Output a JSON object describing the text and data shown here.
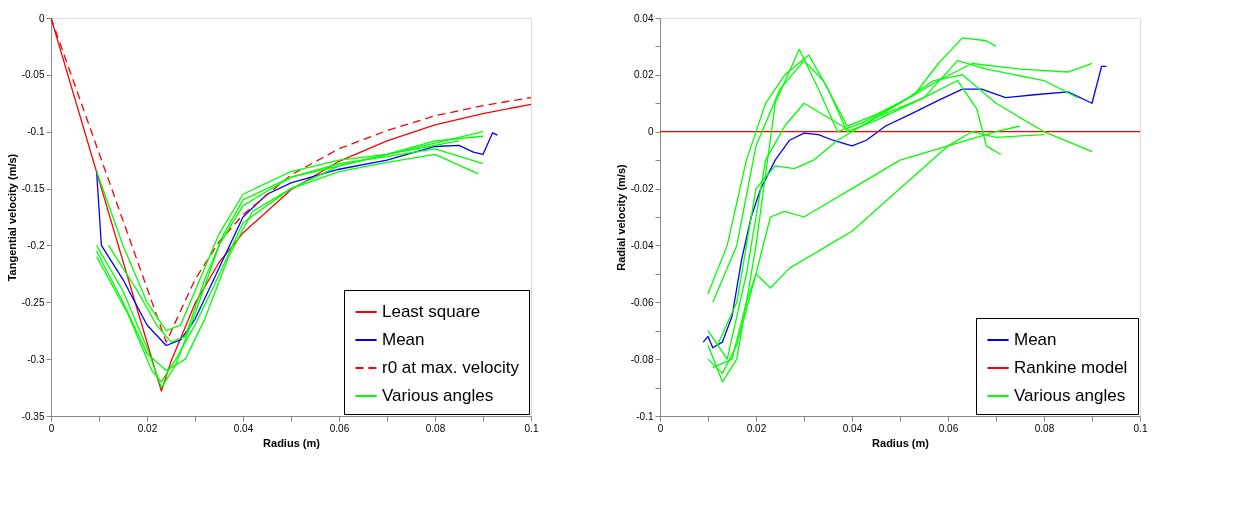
{
  "chart_data": [
    {
      "type": "line",
      "xlabel": "Radius (m)",
      "ylabel": "Tangential velocity (m/s)",
      "legend": "bottom right",
      "grid": false,
      "xlim": [
        0,
        0.1
      ],
      "ylim": [
        -0.35,
        0
      ],
      "xticks": [
        0,
        {
          "value": 0.01,
          "label": null
        },
        0.02,
        {
          "value": 0.03,
          "label": null
        },
        0.04,
        {
          "value": 0.05,
          "label": null
        },
        0.06,
        {
          "value": 0.07,
          "label": null
        },
        0.08,
        {
          "value": 0.09,
          "label": null
        },
        0.1
      ],
      "yticks": [
        0,
        -0.05,
        -0.1,
        -0.15,
        -0.2,
        -0.25,
        -0.3,
        -0.35
      ],
      "series": [
        {
          "name": "Least square",
          "color": "#ff0000",
          "line_style": "solid",
          "x": [
            0,
            0.023,
            0.025,
            0.03,
            0.035,
            0.04,
            0.05,
            0.06,
            0.07,
            0.08,
            0.09,
            0.1
          ],
          "values": [
            0,
            -0.328,
            -0.302,
            -0.251,
            -0.215,
            -0.189,
            -0.151,
            -0.126,
            -0.108,
            -0.094,
            -0.084,
            -0.076
          ]
        },
        {
          "name": "Mean",
          "color": "#0000ff",
          "line_style": "solid",
          "x": [
            0.0095,
            0.0105,
            0.015,
            0.02,
            0.024,
            0.027,
            0.03,
            0.035,
            0.04,
            0.045,
            0.05,
            0.06,
            0.07,
            0.08,
            0.085,
            0.088,
            0.09,
            0.092,
            0.093
          ],
          "values": [
            -0.135,
            -0.2,
            -0.23,
            -0.27,
            -0.288,
            -0.283,
            -0.265,
            -0.22,
            -0.175,
            -0.155,
            -0.145,
            -0.133,
            -0.125,
            -0.113,
            -0.112,
            -0.118,
            -0.12,
            -0.101,
            -0.103
          ]
        },
        {
          "name": "r0 at max. velocity",
          "color": "#ff0000",
          "line_style": "dashed",
          "x": [
            0,
            0.024,
            0.03,
            0.035,
            0.04,
            0.05,
            0.06,
            0.07,
            0.08,
            0.09,
            0.1
          ],
          "values": [
            0,
            -0.285,
            -0.23,
            -0.197,
            -0.173,
            -0.138,
            -0.115,
            -0.099,
            -0.086,
            -0.077,
            -0.07
          ]
        },
        {
          "name": "Various angles",
          "color": "#00ff00",
          "line_style": "solid",
          "x": [
            0.0095,
            0.015,
            0.02,
            0.023,
            0.026,
            0.03,
            0.035,
            0.04,
            0.05,
            0.06,
            0.07,
            0.08,
            0.09
          ],
          "values": [
            -0.2,
            -0.24,
            -0.29,
            -0.325,
            -0.305,
            -0.26,
            -0.2,
            -0.165,
            -0.14,
            -0.13,
            -0.12,
            -0.11,
            -0.1
          ]
        },
        {
          "color": "#00ff00",
          "line_style": "solid",
          "x": [
            0.0095,
            0.015,
            0.02,
            0.024,
            0.027,
            0.03,
            0.035,
            0.04,
            0.05,
            0.06,
            0.07,
            0.08,
            0.09
          ],
          "values": [
            -0.135,
            -0.2,
            -0.25,
            -0.275,
            -0.27,
            -0.24,
            -0.19,
            -0.155,
            -0.135,
            -0.125,
            -0.12,
            -0.108,
            -0.104
          ]
        },
        {
          "color": "#00ff00",
          "line_style": "solid",
          "x": [
            0.0095,
            0.015,
            0.02,
            0.024,
            0.028,
            0.032,
            0.037,
            0.042,
            0.05,
            0.06,
            0.07,
            0.08,
            0.089
          ],
          "values": [
            -0.205,
            -0.25,
            -0.295,
            -0.31,
            -0.3,
            -0.265,
            -0.21,
            -0.17,
            -0.15,
            -0.135,
            -0.127,
            -0.12,
            -0.137
          ]
        },
        {
          "color": "#00ff00",
          "line_style": "solid",
          "x": [
            0.012,
            0.018,
            0.022,
            0.025,
            0.028,
            0.032,
            0.036,
            0.04,
            0.05,
            0.06,
            0.07,
            0.08,
            0.09
          ],
          "values": [
            -0.2,
            -0.24,
            -0.27,
            -0.285,
            -0.28,
            -0.23,
            -0.19,
            -0.16,
            -0.14,
            -0.128,
            -0.122,
            -0.115,
            -0.128
          ]
        },
        {
          "color": "#00ff00",
          "line_style": "solid",
          "x": [
            0.0095,
            0.016,
            0.021,
            0.023,
            0.026,
            0.03,
            0.034,
            0.04,
            0.05,
            0.06,
            0.07,
            0.08,
            0.085
          ],
          "values": [
            -0.21,
            -0.26,
            -0.31,
            -0.32,
            -0.3,
            -0.27,
            -0.235,
            -0.18,
            -0.15,
            -0.13,
            -0.12,
            -0.112,
            -0.108
          ]
        }
      ]
    },
    {
      "type": "line",
      "xlabel": "Radius (m)",
      "ylabel": "Radial velocity (m/s)",
      "legend": "bottom right",
      "grid": false,
      "xlim": [
        0,
        0.1
      ],
      "ylim": [
        -0.1,
        0.04
      ],
      "xticks": [
        0,
        {
          "value": 0.01,
          "label": null
        },
        0.02,
        {
          "value": 0.03,
          "label": null
        },
        0.04,
        {
          "value": 0.05,
          "label": null
        },
        0.06,
        {
          "value": 0.07,
          "label": null
        },
        0.08,
        {
          "value": 0.09,
          "label": null
        },
        0.1
      ],
      "yticks": [
        -0.1,
        {
          "value": -0.09,
          "label": null
        },
        -0.08,
        {
          "value": -0.07,
          "label": null
        },
        -0.06,
        {
          "value": -0.05,
          "label": null
        },
        -0.04,
        {
          "value": -0.03,
          "label": null
        },
        -0.02,
        {
          "value": -0.01,
          "label": null
        },
        0,
        {
          "value": 0.01,
          "label": null
        },
        0.02,
        {
          "value": 0.03,
          "label": null
        },
        0.04
      ],
      "series": [
        {
          "name": "Mean",
          "color": "#0000ff",
          "line_style": "solid",
          "x": [
            0.009,
            0.01,
            0.011,
            0.013,
            0.015,
            0.017,
            0.019,
            0.021,
            0.024,
            0.027,
            0.03,
            0.033,
            0.036,
            0.04,
            0.043,
            0.047,
            0.052,
            0.058,
            0.063,
            0.067,
            0.072,
            0.078,
            0.085,
            0.09,
            0.092,
            0.093
          ],
          "values": [
            -0.074,
            -0.072,
            -0.076,
            -0.074,
            -0.065,
            -0.045,
            -0.03,
            -0.02,
            -0.01,
            -0.003,
            -0.0005,
            -0.001,
            -0.003,
            -0.005,
            -0.003,
            0.002,
            0.006,
            0.011,
            0.015,
            0.015,
            0.012,
            0.013,
            0.014,
            0.01,
            0.023,
            0.023
          ]
        },
        {
          "name": "Rankine model",
          "color": "#ff0000",
          "line_style": "solid",
          "x": [
            0,
            0.1
          ],
          "values": [
            0,
            0
          ]
        },
        {
          "name": "Various angles",
          "color": "#00ff00",
          "line_style": "solid",
          "x": [
            0.01,
            0.013,
            0.016,
            0.02,
            0.024,
            0.029,
            0.033,
            0.037,
            0.042,
            0.05,
            0.058,
            0.065,
            0.075,
            0.085,
            0.09
          ],
          "values": [
            -0.075,
            -0.088,
            -0.08,
            -0.04,
            0.01,
            0.029,
            0.015,
            0.0,
            0.003,
            0.01,
            0.018,
            0.024,
            0.022,
            0.021,
            0.024
          ]
        },
        {
          "color": "#00ff00",
          "line_style": "solid",
          "x": [
            0.01,
            0.014,
            0.018,
            0.022,
            0.026,
            0.031,
            0.035,
            0.039,
            0.045,
            0.055,
            0.062,
            0.068,
            0.08,
            0.087
          ],
          "values": [
            -0.057,
            -0.04,
            -0.01,
            0.01,
            0.02,
            0.027,
            0.015,
            0.0,
            0.004,
            0.012,
            0.025,
            0.022,
            0.018,
            0.012
          ]
        },
        {
          "color": "#00ff00",
          "line_style": "solid",
          "x": [
            0.01,
            0.013,
            0.016,
            0.02,
            0.023,
            0.026,
            0.03,
            0.035,
            0.04,
            0.05,
            0.06,
            0.065,
            0.07,
            0.08
          ],
          "values": [
            -0.08,
            -0.085,
            -0.075,
            -0.05,
            -0.03,
            -0.028,
            -0.03,
            -0.025,
            -0.02,
            -0.01,
            -0.005,
            0.0,
            -0.002,
            -0.001
          ]
        },
        {
          "color": "#00ff00",
          "line_style": "solid",
          "x": [
            0.011,
            0.015,
            0.018,
            0.02,
            0.023,
            0.027,
            0.035,
            0.04,
            0.05,
            0.06,
            0.07,
            0.075
          ],
          "values": [
            -0.083,
            -0.08,
            -0.06,
            -0.05,
            -0.055,
            -0.048,
            -0.04,
            -0.035,
            -0.02,
            -0.005,
            0.0,
            0.002
          ]
        },
        {
          "color": "#00ff00",
          "line_style": "solid",
          "x": [
            0.01,
            0.014,
            0.018,
            0.022,
            0.026,
            0.03,
            0.035,
            0.04,
            0.05,
            0.057,
            0.063,
            0.07,
            0.08,
            0.09
          ],
          "values": [
            -0.07,
            -0.08,
            -0.05,
            -0.01,
            0.002,
            0.01,
            0.005,
            0.0,
            0.01,
            0.018,
            0.02,
            0.01,
            0.0,
            -0.007
          ]
        },
        {
          "color": "#00ff00",
          "line_style": "solid",
          "x": [
            0.012,
            0.016,
            0.02,
            0.024,
            0.028,
            0.032,
            0.037,
            0.045,
            0.055,
            0.062,
            0.066,
            0.068,
            0.071
          ],
          "values": [
            -0.075,
            -0.06,
            -0.02,
            -0.012,
            -0.013,
            -0.01,
            -0.003,
            0.005,
            0.012,
            0.018,
            0.008,
            -0.005,
            -0.008
          ]
        },
        {
          "color": "#00ff00",
          "line_style": "solid",
          "x": [
            0.011,
            0.016,
            0.02,
            0.025,
            0.03,
            0.034,
            0.039,
            0.045,
            0.053,
            0.058,
            0.063,
            0.068,
            0.07
          ],
          "values": [
            -0.06,
            -0.04,
            -0.005,
            0.015,
            0.025,
            0.018,
            0.002,
            0.006,
            0.013,
            0.024,
            0.033,
            0.032,
            0.03
          ]
        }
      ]
    }
  ]
}
